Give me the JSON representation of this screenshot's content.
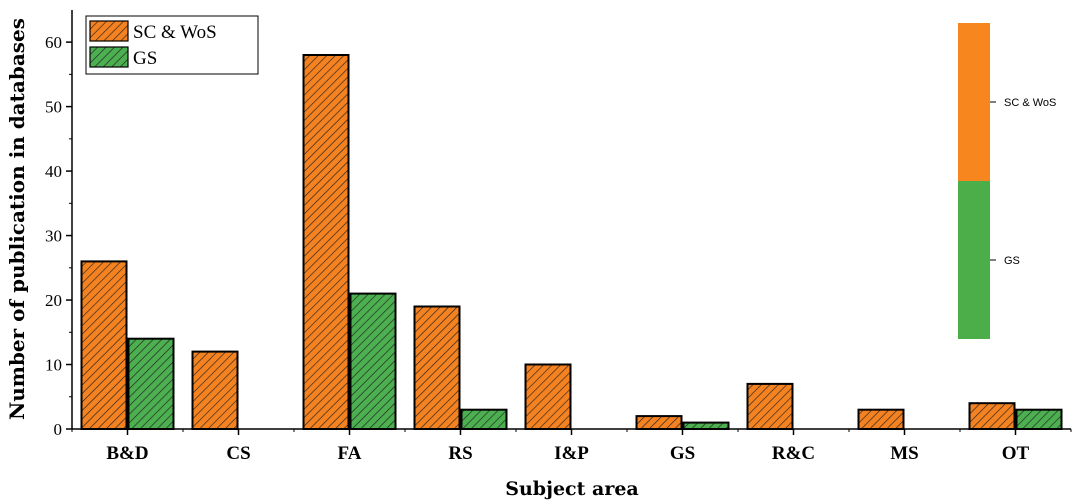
{
  "chart_data": {
    "type": "bar",
    "title": "",
    "xlabel": "Subject area",
    "ylabel": "Number of publication in databases",
    "categories": [
      "B&D",
      "CS",
      "FA",
      "RS",
      "I&P",
      "GS",
      "R&C",
      "MS",
      "OT"
    ],
    "series": [
      {
        "name": "SC & WoS",
        "values": [
          26,
          12,
          58,
          19,
          10,
          2,
          7,
          3,
          4
        ],
        "color": "#F58220",
        "pattern": "diagonal-hatch"
      },
      {
        "name": "GS",
        "values": [
          14,
          0,
          21,
          3,
          0,
          1,
          0,
          0,
          3
        ],
        "color": "#4CAF50",
        "pattern": "diagonal-hatch"
      }
    ],
    "ylim": [
      0,
      65
    ],
    "yticks": [
      "0",
      "10",
      "20",
      "30",
      "40",
      "50",
      "60"
    ],
    "legend_position": "top-left",
    "grid": false,
    "color_key": {
      "position": "top-right",
      "entries": [
        {
          "label": "SC & WoS",
          "color": "#F7861F"
        },
        {
          "label": "GS",
          "color": "#4BAE48"
        }
      ]
    }
  }
}
